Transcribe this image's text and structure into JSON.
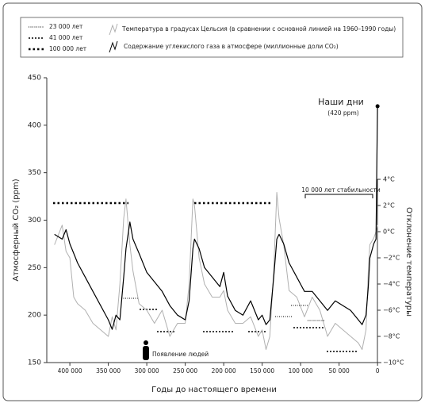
{
  "chart_data": {
    "type": "line",
    "period_legend": [
      "23 000 лет",
      "41 000 лет",
      "100 000 лет"
    ],
    "annotations": {
      "today": "Наши дни",
      "today_value": "(420 ppm)",
      "stability": "10 000 лет стабильности",
      "humans": "Появление людей"
    },
    "x_label": "Годы до настоящего времени",
    "y_label": "Атмосферный CO₂ (ppm)",
    "y2_label": "Отклонение температуры",
    "x": [
      420000,
      410000,
      405000,
      400000,
      395000,
      390000,
      380000,
      370000,
      360000,
      350000,
      345000,
      340000,
      335000,
      330000,
      327000,
      322000,
      318000,
      310000,
      300000,
      290000,
      280000,
      270000,
      260000,
      250000,
      245000,
      240000,
      238000,
      232000,
      225000,
      215000,
      205000,
      200000,
      195000,
      185000,
      175000,
      165000,
      155000,
      150000,
      145000,
      140000,
      135000,
      131000,
      128000,
      122000,
      115000,
      105000,
      95000,
      85000,
      75000,
      65000,
      55000,
      45000,
      35000,
      25000,
      20000,
      15000,
      12000,
      10000,
      5000,
      2000,
      0
    ],
    "series": [
      {
        "name": "Температура в градусах Цельсия (в сравнении с основной линией на 1960–1990 годы)",
        "color": "#b0b0b0",
        "axis": "y2",
        "values": [
          -1,
          0.5,
          -1.5,
          -2,
          -5,
          -5.5,
          -6,
          -7,
          -7.5,
          -8,
          -6.5,
          -7.5,
          -4,
          1,
          2.5,
          -1,
          -3,
          -5.5,
          -6,
          -7,
          -6,
          -8,
          -7,
          -7,
          -4,
          2.5,
          2,
          -2,
          -4,
          -5,
          -5,
          -4.5,
          -6,
          -7,
          -7,
          -6.5,
          -8,
          -7.5,
          -9,
          -8,
          -3,
          3,
          1,
          -1,
          -4.5,
          -5,
          -6.5,
          -5,
          -6,
          -8,
          -7,
          -7.5,
          -8,
          -8.5,
          -9,
          -7.5,
          -3,
          -1,
          -0.5,
          0,
          0.5
        ]
      },
      {
        "name": "Содержание углекислого газа в атмосфере (миллионные доли CO₂)",
        "color": "#000000",
        "values": [
          285,
          280,
          290,
          275,
          265,
          255,
          240,
          225,
          210,
          195,
          185,
          200,
          195,
          240,
          270,
          298,
          280,
          265,
          245,
          235,
          225,
          210,
          200,
          195,
          215,
          270,
          280,
          270,
          250,
          240,
          230,
          245,
          220,
          205,
          200,
          215,
          195,
          200,
          190,
          195,
          240,
          280,
          285,
          275,
          255,
          240,
          225,
          225,
          215,
          205,
          215,
          210,
          205,
          195,
          190,
          200,
          230,
          260,
          275,
          280,
          420
        ]
      }
    ],
    "xlim": [
      430000,
      -5000
    ],
    "xticks": [
      {
        "value": 400000,
        "label": "400 000"
      },
      {
        "value": 350000,
        "label": "350 000"
      },
      {
        "value": 300000,
        "label": "300 000"
      },
      {
        "value": 250000,
        "label": "250 000"
      },
      {
        "value": 200000,
        "label": "200 000"
      },
      {
        "value": 150000,
        "label": "150 000"
      },
      {
        "value": 100000,
        "label": "100 000"
      },
      {
        "value": 50000,
        "label": "50 000"
      },
      0
    ],
    "ylim": [
      150,
      450
    ],
    "yticks": [
      150,
      200,
      250,
      300,
      350,
      400,
      450
    ],
    "y2lim": [
      -10,
      11.76
    ],
    "y2ticks": [
      {
        "value": -10,
        "label": "−10°C"
      },
      {
        "value": -8,
        "label": "−8°C"
      },
      {
        "value": -6,
        "label": "−6°C"
      },
      {
        "value": -4,
        "label": "−4°C"
      },
      {
        "value": -2,
        "label": "−2°C"
      },
      {
        "value": 0,
        "label": "0°C"
      },
      {
        "value": 2,
        "label": "2°C"
      },
      {
        "value": 4,
        "label": "4°C"
      }
    ]
  }
}
